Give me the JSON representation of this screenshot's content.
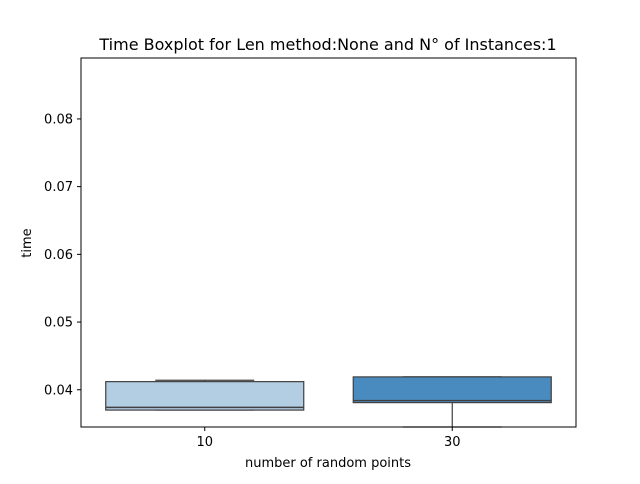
{
  "chart_data": {
    "type": "boxplot",
    "title": "Time Boxplot for Len method:None and N° of Instances:1",
    "xlabel": "number of random points",
    "ylabel": "time",
    "categories": [
      "10",
      "30"
    ],
    "boxes": [
      {
        "category": "10",
        "whisker_low": 0.037,
        "q1": 0.037,
        "median": 0.0374,
        "q3": 0.0412,
        "whisker_high": 0.0414,
        "color": "#b3cde3"
      },
      {
        "category": "30",
        "whisker_low": 0.0345,
        "q1": 0.0381,
        "median": 0.0384,
        "q3": 0.0419,
        "whisker_high": 0.0419,
        "color": "#4a8bbf"
      }
    ],
    "ylim": [
      0.0345,
      0.089
    ],
    "yticks": [
      0.04,
      0.05,
      0.06,
      0.07,
      0.08
    ],
    "ytick_labels": [
      "0.04",
      "0.05",
      "0.06",
      "0.07",
      "0.08"
    ],
    "grid": false
  }
}
